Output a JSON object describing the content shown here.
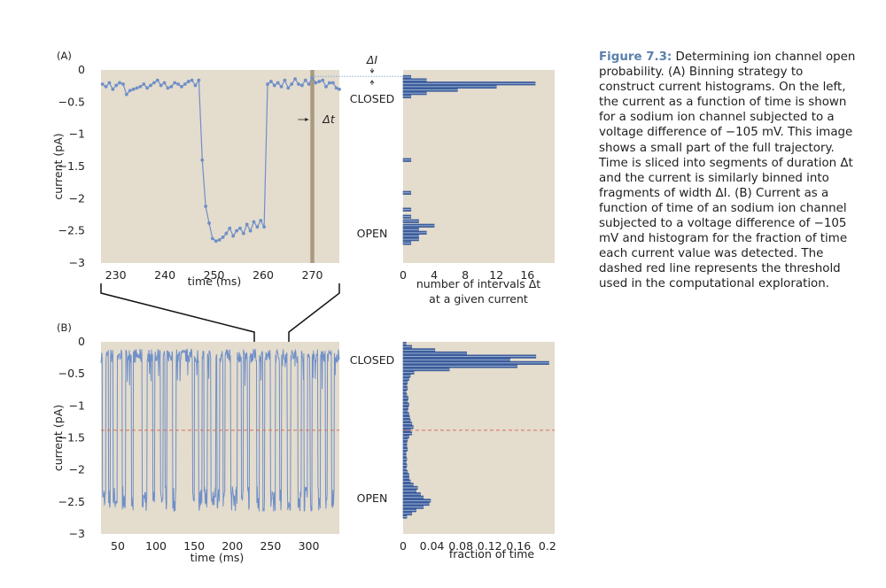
{
  "caption": {
    "label": "Figure 7.3:",
    "text": "Determining ion channel open probability. (A) Binning strategy to construct current histograms. On the left, the current as a function of time is shown for a sodium ion channel subjected to a voltage difference of −105 mV. This image shows a small part of the full trajectory. Time is sliced into segments of duration Δt and the current is similarly binned into fragments of width ΔI. (B) Current as a function of time of an sodium ion channel subjected to a voltage difference of −105 mV and histogram for the fraction of time each current value was detected. The dashed red line represents the threshold used in the computational exploration."
  },
  "colors": {
    "panel_bg": "#e4dccd",
    "trace": "#6f8fc8",
    "marker": "#6f8fc8",
    "bar_fill": "#3c5d9a",
    "bar_stripe": "#b5c6e3",
    "threshold": "#d2705a",
    "dt_band": "#a9997f",
    "dotted": "#7fb2d9",
    "connector": "#111111",
    "text": "#222222"
  },
  "chart_data": [
    {
      "id": "A-trace",
      "type": "line",
      "panel_label": "(A)",
      "xlabel": "time (ms)",
      "ylabel": "current (pA)",
      "xlim": [
        227,
        275.5
      ],
      "ylim": [
        -3,
        0
      ],
      "xticks": [
        230,
        240,
        250,
        260,
        270
      ],
      "yticks": [
        0,
        -0.5,
        -1,
        -1.5,
        -2,
        -2.5,
        -3
      ],
      "ytick_labels": [
        "0",
        "−0.5",
        "−1",
        "−1.5",
        "−2",
        "−2.5",
        "−3"
      ],
      "markers": true,
      "x": [
        227.3,
        228,
        228.7,
        229.4,
        230.1,
        230.8,
        231.5,
        232.2,
        232.9,
        233.6,
        234.3,
        235,
        235.7,
        236.4,
        237.1,
        237.8,
        238.5,
        239.2,
        239.9,
        240.6,
        241.3,
        242,
        242.7,
        243.4,
        244.1,
        244.8,
        245.5,
        246.2,
        246.9,
        247.6,
        248.3,
        249,
        249.7,
        250.4,
        251.1,
        251.8,
        252.5,
        253.2,
        253.9,
        254.6,
        255.3,
        256,
        256.7,
        257.4,
        258.1,
        258.8,
        259.5,
        260.2,
        260.9,
        261.6,
        262.3,
        263,
        263.7,
        264.4,
        265.1,
        265.8,
        266.5,
        267.2,
        267.9,
        268.6,
        269.3,
        270,
        270.7,
        271.4,
        272.1,
        272.8,
        273.5,
        274.2,
        274.9,
        275.5
      ],
      "y": [
        -0.22,
        -0.26,
        -0.2,
        -0.3,
        -0.24,
        -0.2,
        -0.22,
        -0.38,
        -0.32,
        -0.3,
        -0.28,
        -0.26,
        -0.22,
        -0.28,
        -0.24,
        -0.2,
        -0.16,
        -0.24,
        -0.2,
        -0.28,
        -0.26,
        -0.2,
        -0.22,
        -0.26,
        -0.22,
        -0.18,
        -0.16,
        -0.24,
        -0.16,
        -1.4,
        -2.12,
        -2.38,
        -2.62,
        -2.66,
        -2.64,
        -2.6,
        -2.54,
        -2.46,
        -2.58,
        -2.5,
        -2.46,
        -2.54,
        -2.4,
        -2.5,
        -2.36,
        -2.44,
        -2.34,
        -2.44,
        -0.22,
        -0.18,
        -0.24,
        -0.2,
        -0.26,
        -0.16,
        -0.28,
        -0.22,
        -0.14,
        -0.22,
        -0.24,
        -0.16,
        -0.22,
        -0.12,
        -0.2,
        -0.18,
        -0.16,
        -0.26,
        -0.2,
        -0.2,
        -0.28,
        -0.3
      ],
      "dt_band_x": [
        269.6,
        270.4
      ],
      "annotations": {
        "dt": "Δt",
        "dI": "ΔI"
      }
    },
    {
      "id": "A-hist",
      "type": "bar",
      "orientation": "horizontal",
      "xlabel_lines": [
        "number of intervals Δt",
        "at a given current"
      ],
      "xlim": [
        0,
        19.5
      ],
      "ylim": [
        -3,
        0
      ],
      "xticks": [
        0,
        4,
        8,
        12,
        16
      ],
      "state_labels": {
        "closed": "CLOSED",
        "open": "OPEN"
      },
      "bin_centers": [
        -0.11,
        -0.16,
        -0.21,
        -0.26,
        -0.31,
        -0.36,
        -0.41,
        -1.4,
        -1.91,
        -2.17,
        -2.28,
        -2.35,
        -2.42,
        -2.48,
        -2.53,
        -2.58,
        -2.63,
        -2.69
      ],
      "values": [
        1,
        3,
        17,
        12,
        7,
        3,
        1,
        1,
        1,
        1,
        1,
        2,
        4,
        2,
        3,
        2,
        2,
        1
      ]
    },
    {
      "id": "B-trace",
      "type": "line",
      "panel_label": "(B)",
      "xlabel": "time (ms)",
      "ylabel": "current (pA)",
      "xlim": [
        28,
        340
      ],
      "ylim": [
        -3,
        0
      ],
      "xticks": [
        50,
        100,
        150,
        200,
        250,
        300
      ],
      "yticks": [
        0,
        -0.5,
        -1,
        -1.5,
        -2,
        -2.5,
        -3
      ],
      "ytick_labels": [
        "0",
        "−0.5",
        "−1",
        "−1.5",
        "−2",
        "−2.5",
        "−3"
      ],
      "threshold": -1.38,
      "open_intervals": [
        [
          30,
          34
        ],
        [
          38,
          40
        ],
        [
          44,
          49
        ],
        [
          56,
          60
        ],
        [
          68,
          70
        ],
        [
          82,
          88
        ],
        [
          96,
          98
        ],
        [
          106,
          109
        ],
        [
          112,
          114
        ],
        [
          122,
          126
        ],
        [
          148,
          150
        ],
        [
          156,
          160
        ],
        [
          163,
          167
        ],
        [
          172,
          178
        ],
        [
          180,
          183
        ],
        [
          188,
          190
        ],
        [
          198,
          206
        ],
        [
          212,
          214
        ],
        [
          220,
          222
        ],
        [
          232,
          235
        ],
        [
          240,
          242
        ],
        [
          250,
          256
        ],
        [
          262,
          264
        ],
        [
          272,
          276
        ],
        [
          286,
          290
        ],
        [
          294,
          298
        ],
        [
          302,
          304
        ],
        [
          312,
          315
        ],
        [
          322,
          324
        ],
        [
          330,
          333
        ]
      ]
    },
    {
      "id": "B-hist",
      "type": "bar",
      "orientation": "horizontal",
      "xlabel": "fraction of time",
      "xlim": [
        0,
        0.21
      ],
      "ylim": [
        -3,
        0
      ],
      "xticks": [
        0,
        0.04,
        0.08,
        0.12,
        0.16,
        0.2
      ],
      "xtick_labels": [
        "0",
        "0.04",
        "0.08",
        "0.12",
        "0.16",
        "0.2"
      ],
      "threshold": -1.38,
      "state_labels": {
        "closed": "CLOSED",
        "open": "OPEN"
      },
      "bin_centers": [
        -0.03,
        -0.08,
        -0.13,
        -0.18,
        -0.23,
        -0.28,
        -0.33,
        -0.38,
        -0.43,
        -0.48,
        -0.53,
        -0.58,
        -0.63,
        -0.68,
        -0.73,
        -0.78,
        -0.83,
        -0.88,
        -0.93,
        -0.98,
        -1.03,
        -1.08,
        -1.13,
        -1.18,
        -1.23,
        -1.28,
        -1.33,
        -1.38,
        -1.43,
        -1.48,
        -1.53,
        -1.58,
        -1.63,
        -1.68,
        -1.73,
        -1.78,
        -1.83,
        -1.88,
        -1.93,
        -1.98,
        -2.03,
        -2.08,
        -2.13,
        -2.18,
        -2.23,
        -2.28,
        -2.33,
        -2.38,
        -2.43,
        -2.48,
        -2.53,
        -2.58,
        -2.63,
        -2.68,
        -2.73
      ],
      "values": [
        0.004,
        0.012,
        0.044,
        0.088,
        0.184,
        0.148,
        0.202,
        0.158,
        0.064,
        0.015,
        0.01,
        0.008,
        0.006,
        0.005,
        0.006,
        0.004,
        0.005,
        0.007,
        0.006,
        0.008,
        0.007,
        0.006,
        0.008,
        0.009,
        0.01,
        0.012,
        0.014,
        0.01,
        0.012,
        0.008,
        0.006,
        0.005,
        0.005,
        0.006,
        0.004,
        0.004,
        0.005,
        0.004,
        0.005,
        0.004,
        0.006,
        0.008,
        0.008,
        0.01,
        0.014,
        0.02,
        0.018,
        0.024,
        0.028,
        0.038,
        0.036,
        0.028,
        0.018,
        0.012,
        0.005
      ]
    }
  ]
}
